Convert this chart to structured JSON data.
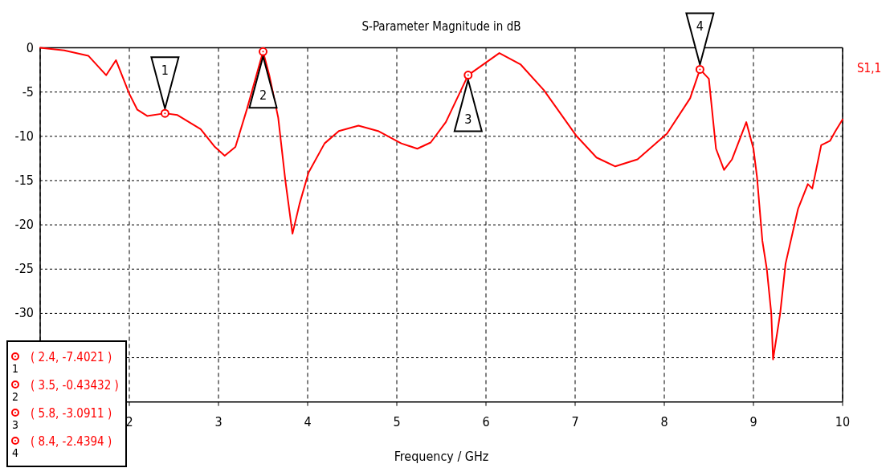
{
  "chart_data": {
    "type": "line",
    "title": "S-Parameter Magnitude in dB",
    "xlabel": "Frequency / GHz",
    "xlim": [
      1,
      10
    ],
    "xticks": [
      {
        "value": 1,
        "label": null
      },
      2,
      3,
      4,
      5,
      6,
      7,
      8,
      9,
      10
    ],
    "ylim": [
      -40,
      0
    ],
    "yticks": [
      0,
      -5,
      -10,
      -15,
      -20,
      -25,
      -30,
      {
        "value": -35,
        "label": null
      }
    ],
    "grid": true,
    "legend": "right",
    "marker": "none",
    "line_style": "solid",
    "series": [
      {
        "name": "S1,1",
        "color": "#ff0000",
        "x": [
          1,
          1.27,
          1.54,
          1.74,
          1.85,
          2.0,
          2.09,
          2.2,
          2.4,
          2.54,
          2.8,
          2.96,
          3.07,
          3.19,
          3.32,
          3.5,
          3.57,
          3.67,
          3.75,
          3.83,
          3.91,
          4.01,
          4.19,
          4.35,
          4.57,
          4.79,
          5.05,
          5.23,
          5.38,
          5.55,
          5.8,
          6.15,
          6.39,
          6.65,
          7.01,
          7.24,
          7.45,
          7.7,
          8.03,
          8.29,
          8.4,
          8.5,
          8.58,
          8.67,
          8.76,
          8.92,
          9.0,
          9.04,
          9.1,
          9.15,
          9.2,
          9.22,
          9.3,
          9.36,
          9.5,
          9.61,
          9.66,
          9.76,
          9.86,
          9.92,
          10
        ],
        "values": [
          0,
          -0.3,
          -0.9,
          -3.1,
          -1.4,
          -5.2,
          -7.0,
          -7.7,
          -7.4,
          -7.6,
          -9.2,
          -11.2,
          -12.2,
          -11.2,
          -6.9,
          -0.43,
          -3.1,
          -7.9,
          -15.0,
          -21.0,
          -17.6,
          -14.1,
          -10.8,
          -9.4,
          -8.8,
          -9.4,
          -10.8,
          -11.4,
          -10.7,
          -8.4,
          -3.09,
          -0.6,
          -1.9,
          -4.8,
          -9.9,
          -12.4,
          -13.4,
          -12.6,
          -9.7,
          -5.7,
          -2.44,
          -3.5,
          -11.4,
          -13.8,
          -12.6,
          -8.4,
          -11.4,
          -14.6,
          -21.8,
          -25.0,
          -30.0,
          -35.2,
          -30.0,
          -24.4,
          -18.2,
          -15.4,
          -15.9,
          -11.0,
          -10.5,
          -9.4,
          -8.1
        ]
      }
    ],
    "annotations": [
      {
        "text": "1",
        "x": 2.4,
        "y": -7.4021
      },
      {
        "text": "2",
        "x": 3.5,
        "y": -0.43432
      },
      {
        "text": "3",
        "x": 5.8,
        "y": -3.0911
      },
      {
        "text": "4",
        "x": 8.4,
        "y": -2.4394
      },
      "( 2.4, -7.4021 )",
      "( 3.5, -0.43432 )",
      "( 5.8, -3.0911 )",
      "( 8.4, -2.4394 )"
    ]
  }
}
